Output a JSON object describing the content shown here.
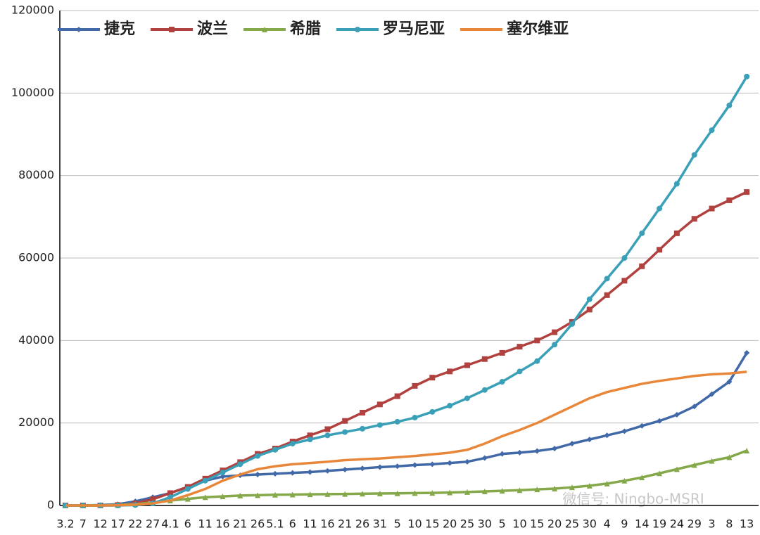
{
  "chart_data": {
    "type": "line",
    "categories": [
      "3.2",
      "7",
      "12",
      "17",
      "22",
      "27",
      "4.1",
      "6",
      "11",
      "16",
      "21",
      "26",
      "5.1",
      "6",
      "11",
      "16",
      "21",
      "26",
      "31",
      "5",
      "10",
      "15",
      "20",
      "25",
      "30",
      "5",
      "10",
      "15",
      "20",
      "25",
      "30",
      "4",
      "9",
      "14",
      "19",
      "24",
      "29",
      "3",
      "8",
      "13"
    ],
    "series": [
      {
        "name": "捷克",
        "color": "#4169a8",
        "marker": "diamond",
        "values": [
          0,
          0,
          100,
          300,
          1000,
          2000,
          3000,
          4500,
          6000,
          7000,
          7300,
          7500,
          7700,
          7900,
          8100,
          8400,
          8700,
          9000,
          9300,
          9500,
          9800,
          10000,
          10300,
          10600,
          11500,
          12500,
          12800,
          13200,
          13800,
          15000,
          16000,
          17000,
          18000,
          19300,
          20500,
          22000,
          24000,
          27000,
          30000,
          37000
        ]
      },
      {
        "name": "波兰",
        "color": "#b0413e",
        "marker": "square",
        "values": [
          0,
          0,
          0,
          100,
          500,
          1500,
          3000,
          4500,
          6500,
          8500,
          10500,
          12500,
          13800,
          15500,
          17000,
          18500,
          20500,
          22500,
          24500,
          26500,
          29000,
          31000,
          32500,
          34000,
          35500,
          37000,
          38500,
          40000,
          42000,
          44500,
          47500,
          51000,
          54500,
          58000,
          62000,
          66000,
          69500,
          72000,
          74000,
          76000
        ]
      },
      {
        "name": "希腊",
        "color": "#84a84a",
        "marker": "triangle",
        "values": [
          0,
          0,
          50,
          150,
          350,
          700,
          1200,
          1600,
          2000,
          2200,
          2400,
          2500,
          2600,
          2650,
          2700,
          2750,
          2800,
          2850,
          2900,
          2950,
          3000,
          3050,
          3150,
          3250,
          3400,
          3550,
          3700,
          3900,
          4100,
          4400,
          4800,
          5300,
          6000,
          6800,
          7800,
          8800,
          9800,
          10800,
          11700,
          13300
        ]
      },
      {
        "name": "罗马尼亚",
        "color": "#3aa0b8",
        "marker": "circle",
        "values": [
          0,
          0,
          0,
          0,
          100,
          500,
          2000,
          4000,
          6000,
          8000,
          10000,
          12000,
          13500,
          15000,
          16000,
          17000,
          17800,
          18600,
          19500,
          20300,
          21300,
          22700,
          24200,
          26000,
          28000,
          30000,
          32500,
          35000,
          39000,
          44000,
          50000,
          55000,
          60000,
          66000,
          72000,
          78000,
          85000,
          91000,
          97000,
          104000
        ]
      },
      {
        "name": "塞尔维亚",
        "color": "#e8873a",
        "marker": "none",
        "values": [
          0,
          0,
          0,
          50,
          200,
          500,
          1200,
          2500,
          4000,
          6000,
          7500,
          8800,
          9500,
          10000,
          10300,
          10600,
          11000,
          11200,
          11400,
          11700,
          12000,
          12400,
          12800,
          13500,
          15000,
          16800,
          18300,
          20000,
          22000,
          24000,
          26000,
          27500,
          28500,
          29500,
          30200,
          30800,
          31400,
          31800,
          32000,
          32400
        ]
      }
    ],
    "ylim": [
      0,
      120000
    ],
    "yticks": [
      0,
      20000,
      40000,
      60000,
      80000,
      100000,
      120000
    ],
    "grid": true,
    "legend": "top-left",
    "watermark": "微信号: Ningbo-MSRI"
  }
}
